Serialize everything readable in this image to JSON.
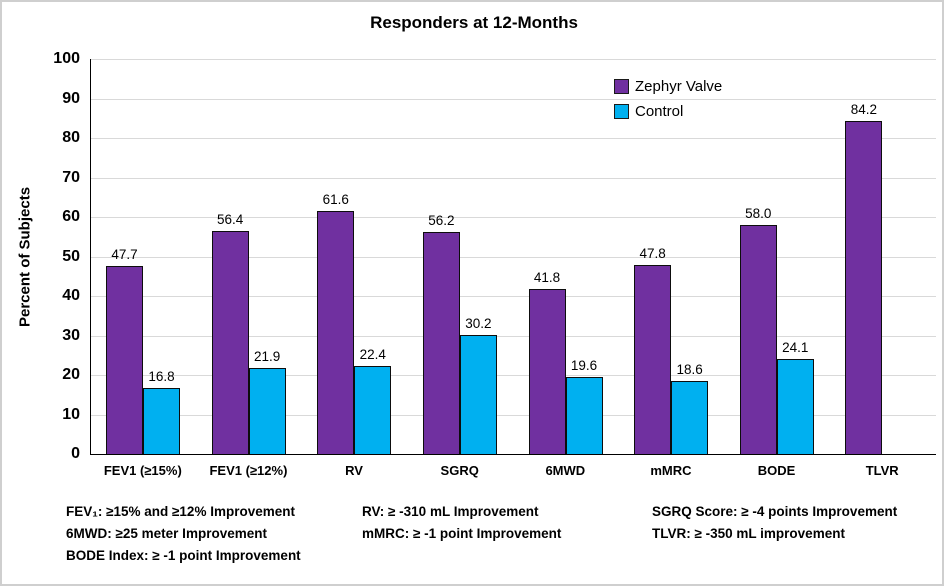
{
  "chart_data": {
    "type": "bar",
    "title": "Responders at 12-Months",
    "ylabel": "Percent of Subjects",
    "xlabel": "",
    "ylim": [
      0,
      100
    ],
    "ytick_step": 10,
    "grid": true,
    "legend_position": "top-right",
    "categories": [
      "FEV1 (≥15%)",
      "FEV1 (≥12%)",
      "RV",
      "SGRQ",
      "6MWD",
      "mMRC",
      "BODE",
      "TLVR"
    ],
    "series": [
      {
        "name": "Zephyr Valve",
        "color": "#7030A0",
        "values": [
          47.7,
          56.4,
          61.6,
          56.2,
          41.8,
          47.8,
          58.0,
          84.2
        ]
      },
      {
        "name": "Control",
        "color": "#00B0F0",
        "values": [
          16.8,
          21.9,
          22.4,
          30.2,
          19.6,
          18.6,
          24.1,
          null
        ]
      }
    ],
    "value_label_decimals": 1
  },
  "footnotes": {
    "col1": [
      "FEV₁: ≥15% and ≥12% Improvement",
      "6MWD: ≥25 meter Improvement",
      "BODE Index: ≥ -1 point Improvement"
    ],
    "col2": [
      "RV: ≥ -310 mL Improvement",
      "mMRC: ≥ -1 point Improvement"
    ],
    "col3": [
      "SGRQ Score: ≥ -4 points Improvement",
      "TLVR: ≥ -350 mL improvement"
    ]
  }
}
